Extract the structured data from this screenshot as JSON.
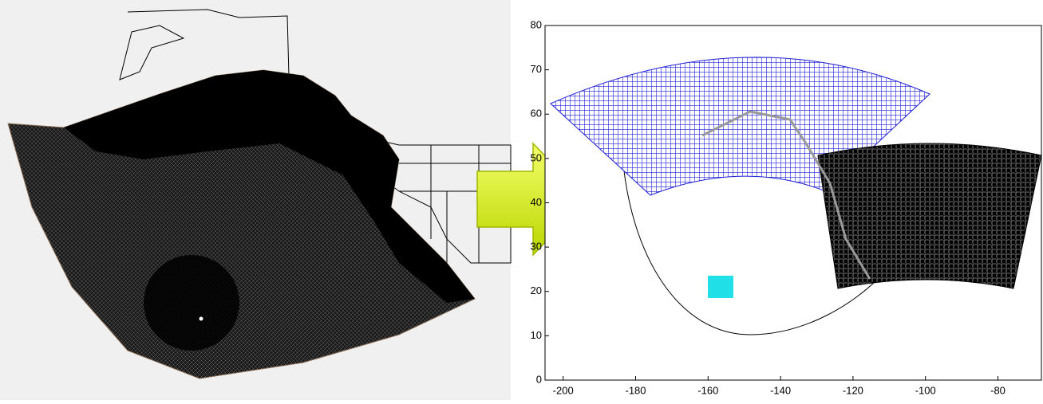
{
  "right_plot": {
    "xlim": [
      -205,
      -68
    ],
    "ylim": [
      0,
      80
    ],
    "xticks": [
      -200,
      -180,
      -160,
      -140,
      -120,
      -100,
      -80
    ],
    "yticks": [
      0,
      10,
      20,
      30,
      40,
      50,
      60,
      70,
      80
    ]
  }
}
